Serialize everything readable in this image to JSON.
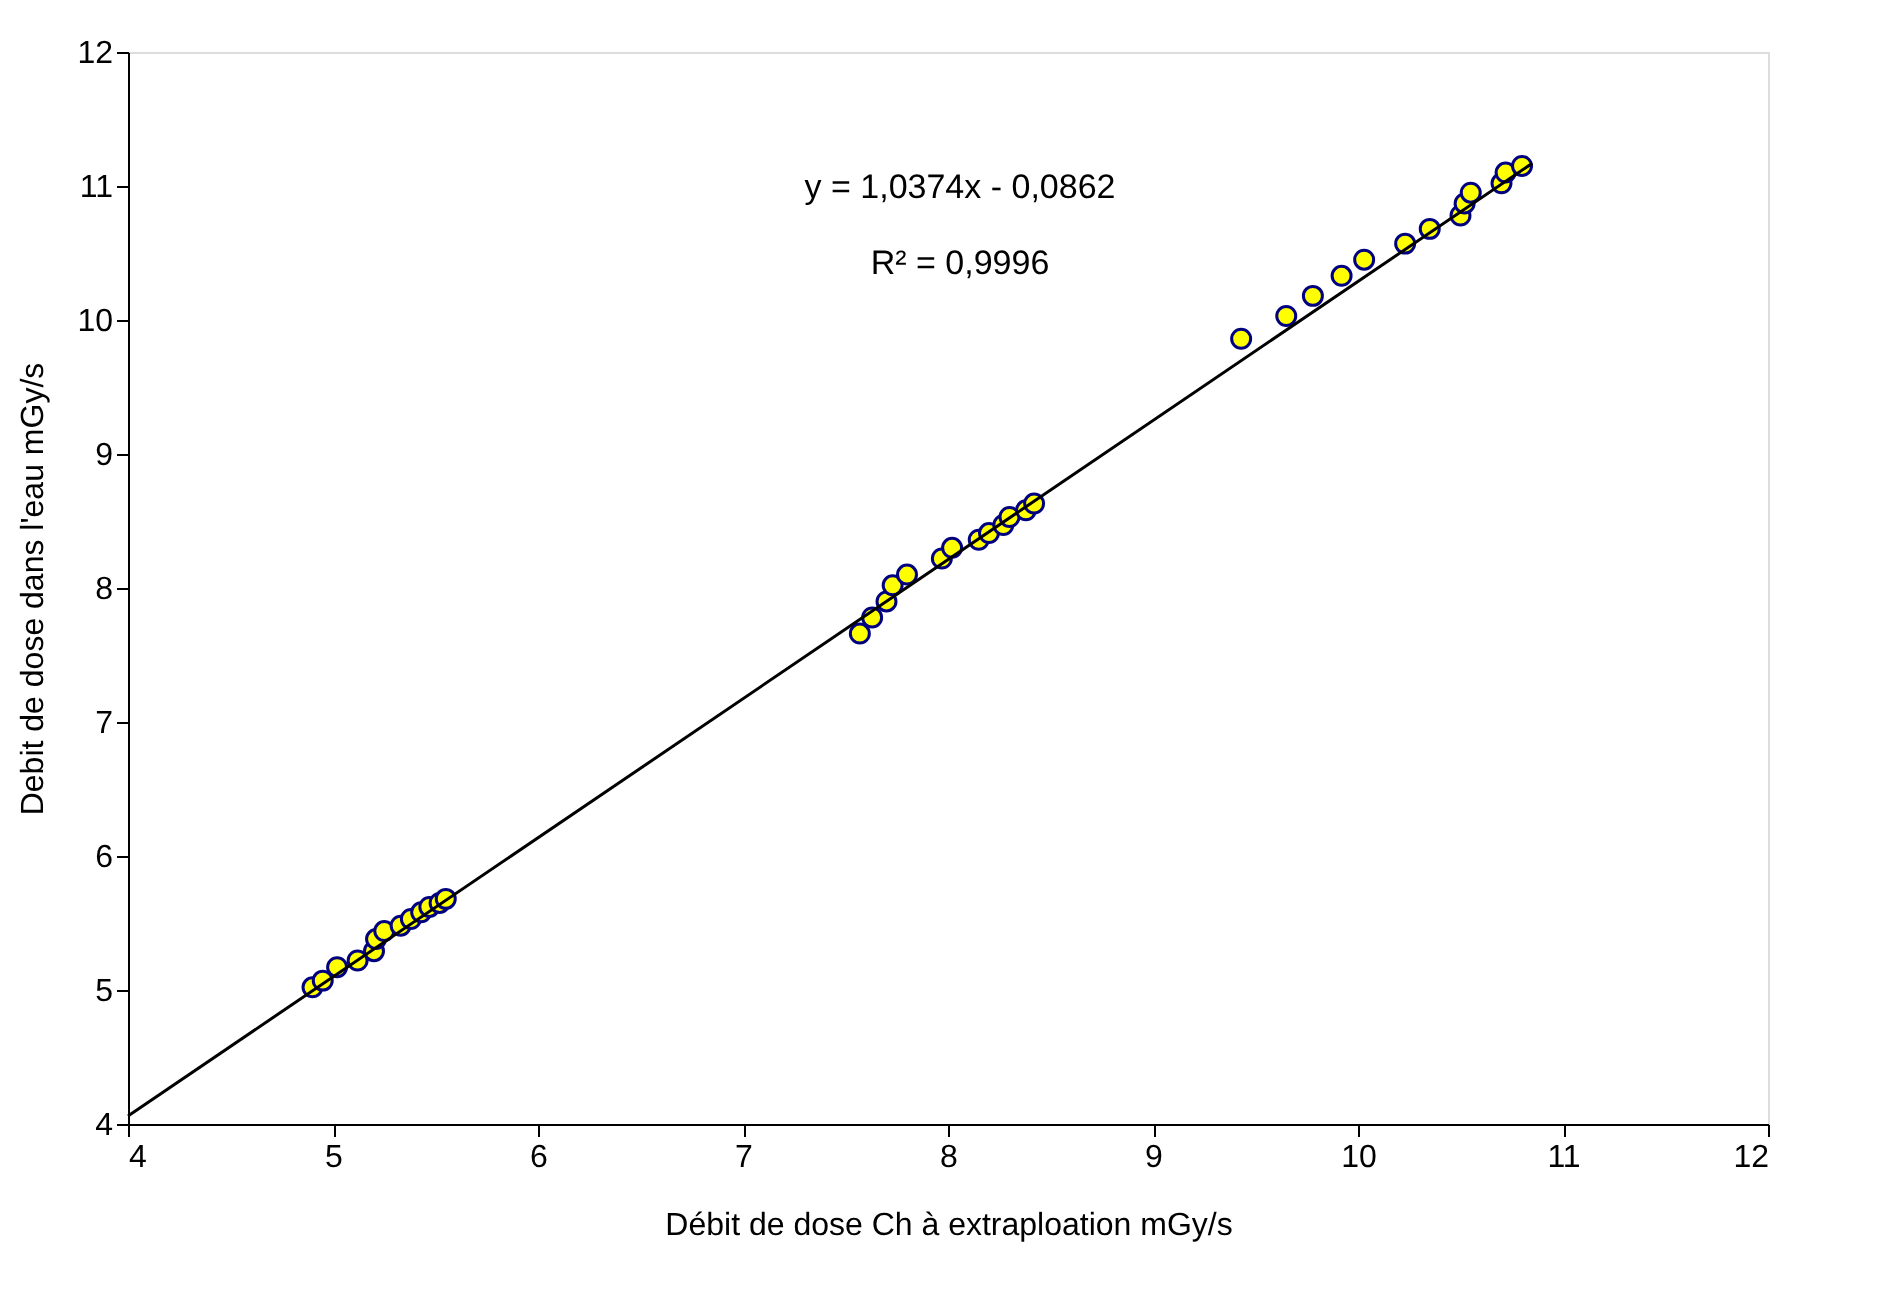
{
  "chart_data": {
    "type": "scatter",
    "xlabel": "Débit de dose Ch à extraploation mGy/s",
    "ylabel": "Debit de dose dans l'eau mGy/s",
    "xlim": [
      4,
      12
    ],
    "ylim": [
      4,
      12
    ],
    "xticks": [
      4,
      5,
      6,
      7,
      8,
      9,
      10,
      11,
      12
    ],
    "yticks": [
      4,
      5,
      6,
      7,
      8,
      9,
      10,
      11,
      12
    ],
    "grid": false,
    "annotations": [
      "y = 1,0374x - 0,0862",
      "R² = 0,9996"
    ],
    "series": [
      {
        "marker": "circle",
        "color": "#ffff00",
        "x": [
          4.9,
          4.95,
          5.02,
          5.12,
          5.2,
          5.21,
          5.25,
          5.33,
          5.38,
          5.43,
          5.47,
          5.52,
          5.55,
          7.57,
          7.63,
          7.7,
          7.73,
          7.8,
          7.97,
          8.02,
          8.15,
          8.2,
          8.27,
          8.3,
          8.38,
          8.42,
          9.43,
          9.65,
          9.78,
          9.92,
          10.03,
          10.23,
          10.35,
          10.5,
          10.52,
          10.55,
          10.7,
          10.72,
          10.8
        ],
        "values": [
          5.02,
          5.07,
          5.17,
          5.22,
          5.29,
          5.38,
          5.44,
          5.48,
          5.53,
          5.58,
          5.62,
          5.65,
          5.68,
          7.66,
          7.78,
          7.9,
          8.02,
          8.1,
          8.22,
          8.3,
          8.36,
          8.41,
          8.47,
          8.53,
          8.58,
          8.63,
          9.86,
          10.03,
          10.18,
          10.33,
          10.45,
          10.57,
          10.68,
          10.78,
          10.87,
          10.95,
          11.02,
          11.1,
          11.15
        ]
      },
      {
        "type": "line",
        "marker": "none",
        "color": "#000000",
        "x": [
          4,
          10.85
        ],
        "values": [
          4.06,
          11.17
        ]
      }
    ]
  }
}
